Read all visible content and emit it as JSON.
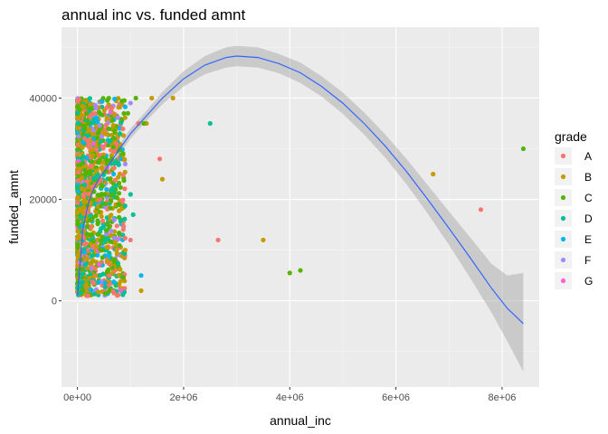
{
  "chart_data": {
    "type": "scatter",
    "title": "annual inc vs. funded amnt",
    "xlabel": "annual_inc",
    "ylabel": "funded_amnt",
    "xlim": [
      -300000,
      8700000
    ],
    "ylim": [
      -17000,
      54000
    ],
    "x_ticks": [
      0,
      2000000,
      4000000,
      6000000,
      8000000
    ],
    "x_tick_labels": [
      "0e+00",
      "2e+06",
      "4e+06",
      "6e+06",
      "8e+06"
    ],
    "y_ticks": [
      0,
      20000,
      40000
    ],
    "y_tick_labels": [
      "0",
      "20000",
      "40000"
    ],
    "grid": true,
    "legend": {
      "title": "grade",
      "position": "right",
      "entries": [
        {
          "label": "A",
          "color": "#F8766D"
        },
        {
          "label": "B",
          "color": "#C49A00"
        },
        {
          "label": "C",
          "color": "#53B400"
        },
        {
          "label": "D",
          "color": "#00C094"
        },
        {
          "label": "E",
          "color": "#00B6EB"
        },
        {
          "label": "F",
          "color": "#A58AFF"
        },
        {
          "label": "G",
          "color": "#FB61D7"
        }
      ]
    },
    "series": [
      {
        "name": "A",
        "color": "#F8766D",
        "points": [
          [
            1550000,
            28000
          ],
          [
            2650000,
            12000
          ],
          [
            7600000,
            18000
          ],
          [
            1000000,
            12000
          ],
          [
            1150000,
            35000
          ],
          [
            600000,
            5000
          ],
          [
            200000,
            1000
          ]
        ]
      },
      {
        "name": "B",
        "color": "#C49A00",
        "points": [
          [
            1800000,
            40000
          ],
          [
            1600000,
            24000
          ],
          [
            3500000,
            12000
          ],
          [
            6700000,
            25000
          ],
          [
            1400000,
            40000
          ],
          [
            1200000,
            2000
          ],
          [
            900000,
            10000
          ],
          [
            1300000,
            35000
          ]
        ]
      },
      {
        "name": "C",
        "color": "#53B400",
        "points": [
          [
            8400000,
            30000
          ],
          [
            4000000,
            5500
          ],
          [
            4200000,
            6000
          ],
          [
            1250000,
            35000
          ],
          [
            1100000,
            40000
          ],
          [
            950000,
            37000
          ]
        ]
      },
      {
        "name": "D",
        "color": "#00C094",
        "points": [
          [
            2500000,
            35000
          ],
          [
            1000000,
            21000
          ],
          [
            1050000,
            17000
          ],
          [
            800000,
            33000
          ]
        ]
      },
      {
        "name": "E",
        "color": "#00B6EB",
        "points": [
          [
            1200000,
            5000
          ],
          [
            600000,
            9000
          ]
        ]
      },
      {
        "name": "F",
        "color": "#A58AFF",
        "points": [
          [
            1000000,
            39000
          ],
          [
            900000,
            27000
          ],
          [
            350000,
            38000
          ]
        ]
      },
      {
        "name": "G",
        "color": "#FB61D7",
        "points": [
          [
            300000,
            31000
          ]
        ]
      }
    ],
    "smooth": {
      "color": "#3366FF",
      "band_color": "#999999",
      "x": [
        0,
        100000,
        200000,
        300000,
        400000,
        600000,
        800000,
        1000000,
        1300000,
        1600000,
        2000000,
        2400000,
        2800000,
        3000000,
        3400000,
        3800000,
        4200000,
        4600000,
        5000000,
        5400000,
        5800000,
        6200000,
        6600000,
        7000000,
        7400000,
        7800000,
        8100000,
        8400000
      ],
      "y": [
        1000,
        14000,
        19000,
        22000,
        24000,
        27000,
        30000,
        33000,
        36500,
        40000,
        43800,
        46500,
        48000,
        48300,
        48000,
        46800,
        45000,
        42300,
        39000,
        35000,
        30500,
        25500,
        20000,
        14300,
        8500,
        2500,
        -1500,
        -4500
      ],
      "lower": [
        -1000,
        12500,
        17800,
        21000,
        23000,
        26000,
        29000,
        32000,
        35500,
        38800,
        42300,
        44700,
        46000,
        46300,
        46000,
        44900,
        43000,
        40300,
        36900,
        32800,
        28200,
        23000,
        17200,
        11000,
        4500,
        -2300,
        -8000,
        -14000
      ],
      "upper": [
        3000,
        15500,
        20200,
        23000,
        25000,
        28000,
        31000,
        34000,
        37500,
        41200,
        45300,
        48300,
        50000,
        50300,
        50000,
        48700,
        47000,
        44300,
        41100,
        37200,
        32800,
        28000,
        22800,
        17600,
        12500,
        7300,
        5000,
        5500
      ]
    }
  }
}
